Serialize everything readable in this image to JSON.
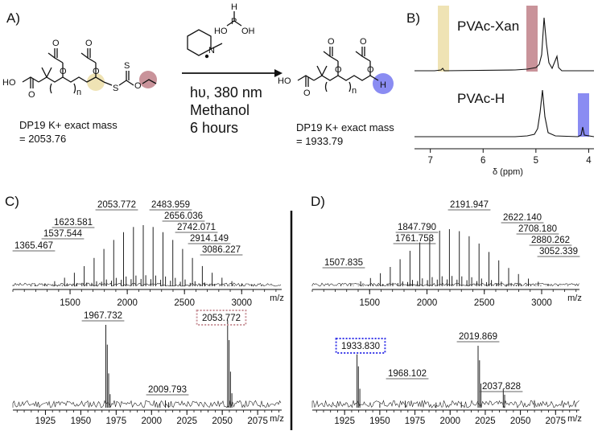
{
  "panels": {
    "a": "A)",
    "b": "B)",
    "c": "C)",
    "d": "D)"
  },
  "scheme": {
    "reagent_atoms": {
      "h": "H",
      "p": "P",
      "ho_left": "HO",
      "oh_right": "OH",
      "n": "N"
    },
    "conditions": {
      "light": "hυ, 380 nm",
      "solvent": "Methanol",
      "time": "6 hours"
    },
    "reactant": {
      "atoms": {
        "ho": "HO",
        "o_acid": "O",
        "n": "n",
        "s1": "S",
        "s2": "S",
        "o1": "O",
        "o2": "O",
        "o3": "O",
        "o4": "O",
        "o5": "O"
      },
      "mass_line1": "DP19 K+ exact mass",
      "mass_line2": "= 2053.76"
    },
    "product": {
      "atoms": {
        "ho": "HO",
        "o_acid": "O",
        "n": "n",
        "h": "H",
        "o1": "O",
        "o2": "O",
        "o3": "O",
        "o4": "O"
      },
      "mass_line1": "DP19 K+ exact mass",
      "mass_line2": "= 1933.79"
    },
    "highlight_colors": {
      "yellow": "#efe3b4",
      "mauve": "#c9939a",
      "blue": "#8a8cf2"
    }
  },
  "nmr": {
    "traces": [
      "PVAc-Xan",
      "PVAc-H"
    ],
    "x_ticks": [
      "7",
      "6",
      "5",
      "4"
    ],
    "x_label": "δ (ppm)",
    "x_range": [
      7.3,
      3.9
    ]
  },
  "chart_data": [
    {
      "type": "line",
      "panel": "C) top",
      "x_label": "m/z",
      "x_ticks": [
        "1500",
        "2000",
        "2500",
        "3000"
      ],
      "x_range": [
        1000,
        3350
      ],
      "peak_labels": [
        {
          "label": "1365.467",
          "x": 1365.467
        },
        {
          "label": "1537.544",
          "x": 1537.544
        },
        {
          "label": "1623.581",
          "x": 1623.581
        },
        {
          "label": "2053.772",
          "x": 2053.772
        },
        {
          "label": "2483.959",
          "x": 2483.959
        },
        {
          "label": "2656.036",
          "x": 2656.036
        },
        {
          "label": "2742.071",
          "x": 2742.071
        },
        {
          "label": "2914.149",
          "x": 2914.149
        },
        {
          "label": "3086.227",
          "x": 3086.227
        }
      ]
    },
    {
      "type": "line",
      "panel": "C) bottom",
      "x_label": "m/z",
      "x_ticks": [
        "1925",
        "1950",
        "1975",
        "2000",
        "2025",
        "2050",
        "2075"
      ],
      "x_range": [
        1902,
        2092
      ],
      "peak_labels": [
        {
          "label": "1967.732",
          "x": 1967.732
        },
        {
          "label": "2009.793",
          "x": 2009.793
        },
        {
          "label": "2053.772",
          "x": 2053.772,
          "boxed": true,
          "box_color": "#c9939a"
        }
      ]
    },
    {
      "type": "line",
      "panel": "D) top",
      "x_label": "m/z",
      "x_ticks": [
        "1500",
        "2000",
        "2500",
        "3000"
      ],
      "x_range": [
        1000,
        3330
      ],
      "peak_labels": [
        {
          "label": "1507.835",
          "x": 1507.835
        },
        {
          "label": "1761.753",
          "x": 1761.753
        },
        {
          "label": "1847.790",
          "x": 1847.79
        },
        {
          "label": "2191.947",
          "x": 2191.947
        },
        {
          "label": "2622.140",
          "x": 2622.14
        },
        {
          "label": "2708.180",
          "x": 2708.18
        },
        {
          "label": "2880.262",
          "x": 2880.262
        },
        {
          "label": "3052.339",
          "x": 3052.339
        }
      ]
    },
    {
      "type": "line",
      "panel": "D) bottom",
      "x_label": "m/z",
      "x_ticks": [
        "1925",
        "1950",
        "1975",
        "2000",
        "2025",
        "2050",
        "2075"
      ],
      "x_range": [
        1902,
        2092
      ],
      "peak_labels": [
        {
          "label": "1933.830",
          "x": 1933.83,
          "boxed": true,
          "box_color": "#3a3ae8"
        },
        {
          "label": "1968.102",
          "x": 1968.102
        },
        {
          "label": "2019.869",
          "x": 2019.869
        },
        {
          "label": "2037.828",
          "x": 2037.828
        }
      ]
    }
  ]
}
